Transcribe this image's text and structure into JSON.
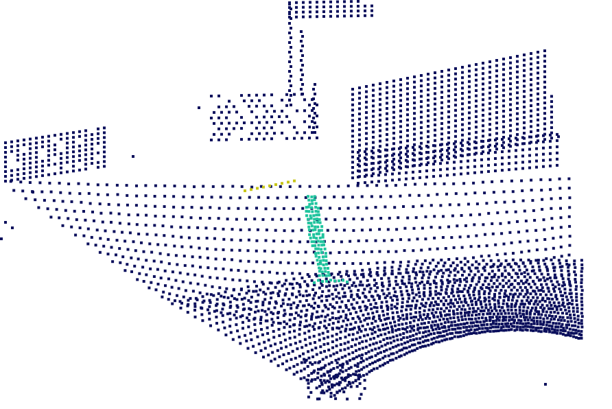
{
  "scene": {
    "kind": "lidar-point-cloud",
    "background": "#ffffff",
    "point_marker": "square",
    "classes": [
      {
        "key": "background",
        "color": "#0b0f5c"
      },
      {
        "key": "person",
        "color": "#20c49e"
      },
      {
        "key": "small-object",
        "color": "#c8c61a"
      }
    ]
  }
}
